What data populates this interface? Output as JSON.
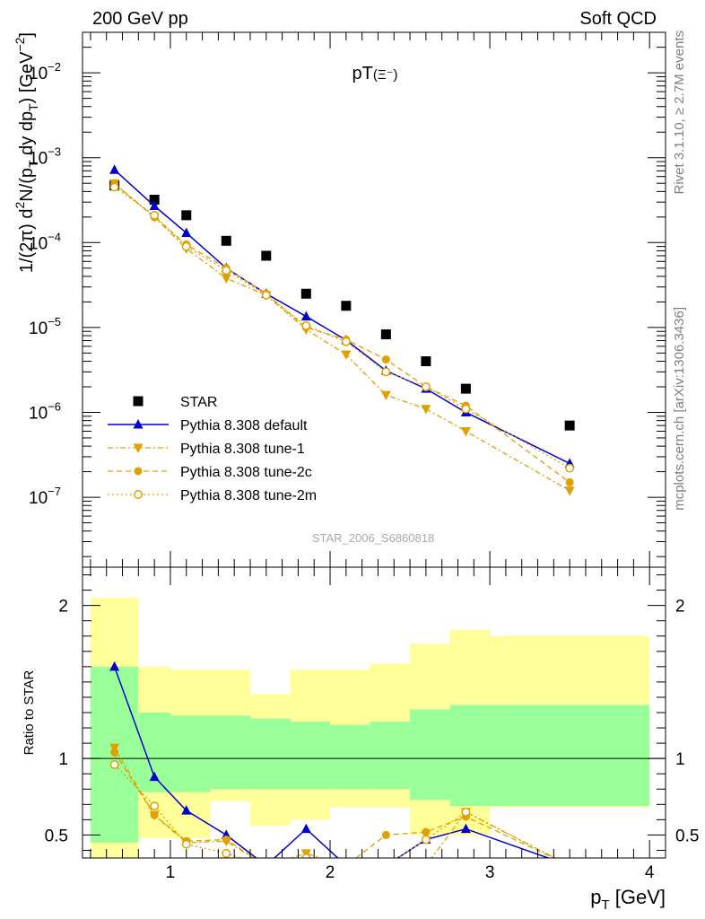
{
  "header": {
    "left": "200 GeV pp",
    "right": "Soft QCD"
  },
  "side": {
    "rivet": "Rivet 3.1.10, ≥ 2.7M events",
    "mcplots": "mcplots.cern.ch [arXiv:1306.3436]"
  },
  "colors": {
    "star": "#000000",
    "default": "#0000cc",
    "tune": "#e0a000",
    "band_inner": "#99ff99",
    "band_outer": "#ffff99"
  },
  "chart_data": [
    {
      "type": "scatter",
      "title": "pT(Ξ⁻)",
      "ylabel": "1/(2π) d²N/(p_T dy dp_T) [GeV⁻²]",
      "xlabel": "",
      "watermark": "STAR_2006_S6860818",
      "xlim": [
        0.45,
        4.1
      ],
      "ylim": [
        1.5e-08,
        0.03
      ],
      "yscale": "log",
      "yticks": [
        {
          "value": 1e-07,
          "base": "10",
          "exp": "−7"
        },
        {
          "value": 1e-06,
          "base": "10",
          "exp": "−6"
        },
        {
          "value": 1e-05,
          "base": "10",
          "exp": "−5"
        },
        {
          "value": 0.0001,
          "base": "10",
          "exp": "−4"
        },
        {
          "value": 0.001,
          "base": "10",
          "exp": "−3"
        },
        {
          "value": 0.01,
          "base": "10",
          "exp": "−2"
        }
      ],
      "legend_position": "bottom-left",
      "x": [
        0.65,
        0.9,
        1.1,
        1.35,
        1.6,
        1.85,
        2.1,
        2.35,
        2.6,
        2.85,
        3.5
      ],
      "series": [
        {
          "name": "STAR",
          "marker": "square",
          "values": [
            0.00047,
            0.00032,
            0.00021,
            0.000105,
            7e-05,
            2.5e-05,
            1.8e-05,
            8.3e-06,
            4e-06,
            1.9e-06,
            7e-07
          ]
        },
        {
          "name": "Pythia 8.308 default",
          "marker": "triangle-up",
          "line": "solid",
          "values": [
            0.00072,
            0.00027,
            0.00013,
            5e-05,
            2.5e-05,
            1.35e-05,
            7.1e-06,
            3.1e-06,
            1.9e-06,
            1e-06,
            2.5e-07
          ]
        },
        {
          "name": "Pythia 8.308 tune-1",
          "marker": "triangle-down",
          "line": "dashdot",
          "values": [
            0.0005,
            0.0002,
            8.5e-05,
            3.8e-05,
            2.4e-05,
            9.5e-06,
            4.8e-06,
            1.6e-06,
            1.1e-06,
            6e-07,
            1.2e-07
          ]
        },
        {
          "name": "Pythia 8.308 tune-2c",
          "marker": "circle",
          "line": "dashed",
          "values": [
            0.00049,
            0.0002,
            9.5e-05,
            5e-05,
            2.5e-05,
            1e-05,
            7.2e-06,
            4.2e-06,
            2e-06,
            1.2e-06,
            1.5e-07
          ]
        },
        {
          "name": "Pythia 8.308 tune-2m",
          "marker": "circle-open",
          "line": "dotted",
          "values": [
            0.00045,
            0.00021,
            9e-05,
            4.7e-05,
            2.4e-05,
            1.05e-05,
            6.8e-06,
            3e-06,
            2e-06,
            1.1e-06,
            2.2e-07
          ]
        }
      ]
    },
    {
      "type": "scatter",
      "ylabel": "Ratio to STAR",
      "xlabel": "p_T [GeV]",
      "xlim": [
        0.45,
        4.1
      ],
      "ylim": [
        0.35,
        2.25
      ],
      "yticks": [
        0.5,
        1,
        2
      ],
      "xticks": [
        1,
        2,
        3,
        4
      ],
      "reference_line": 1,
      "bands": {
        "edges": [
          0.5,
          0.8,
          1.0,
          1.25,
          1.5,
          1.75,
          2.0,
          2.25,
          2.5,
          2.75,
          3.0,
          4.0
        ],
        "inner_lo": [
          0.45,
          0.78,
          0.78,
          0.8,
          0.8,
          0.8,
          0.8,
          0.8,
          0.73,
          0.69,
          0.69
        ],
        "inner_hi": [
          1.6,
          1.3,
          1.28,
          1.28,
          1.26,
          1.24,
          1.22,
          1.24,
          1.32,
          1.35,
          1.35
        ],
        "outer_lo": [
          0.25,
          0.48,
          0.48,
          0.72,
          0.56,
          0.6,
          0.68,
          0.68,
          0.5,
          0.5,
          0.68
        ],
        "outer_hi": [
          2.05,
          1.6,
          1.58,
          1.58,
          1.42,
          1.58,
          1.58,
          1.62,
          1.75,
          1.84,
          1.8
        ]
      },
      "x": [
        0.65,
        0.9,
        1.1,
        1.35,
        1.6,
        1.85,
        2.1,
        2.35,
        2.6,
        2.85,
        3.5
      ],
      "series": [
        {
          "name": "Pythia 8.308 default",
          "values": [
            1.6,
            0.88,
            0.66,
            0.5,
            0.3,
            0.54,
            0.3,
            0.3,
            0.47,
            0.54,
            0.3
          ]
        },
        {
          "name": "Pythia 8.308 tune-1",
          "values": [
            1.07,
            0.63,
            0.45,
            0.46,
            0.3,
            0.38,
            0.3,
            0.3,
            0.3,
            0.65,
            0.3
          ]
        },
        {
          "name": "Pythia 8.308 tune-2c",
          "values": [
            1.04,
            0.63,
            0.46,
            0.47,
            0.3,
            0.3,
            0.3,
            0.5,
            0.52,
            0.62,
            0.3
          ]
        },
        {
          "name": "Pythia 8.308 tune-2m",
          "values": [
            0.96,
            0.69,
            0.44,
            0.38,
            0.3,
            0.35,
            0.3,
            0.3,
            0.47,
            0.65,
            0.3
          ]
        }
      ]
    }
  ]
}
